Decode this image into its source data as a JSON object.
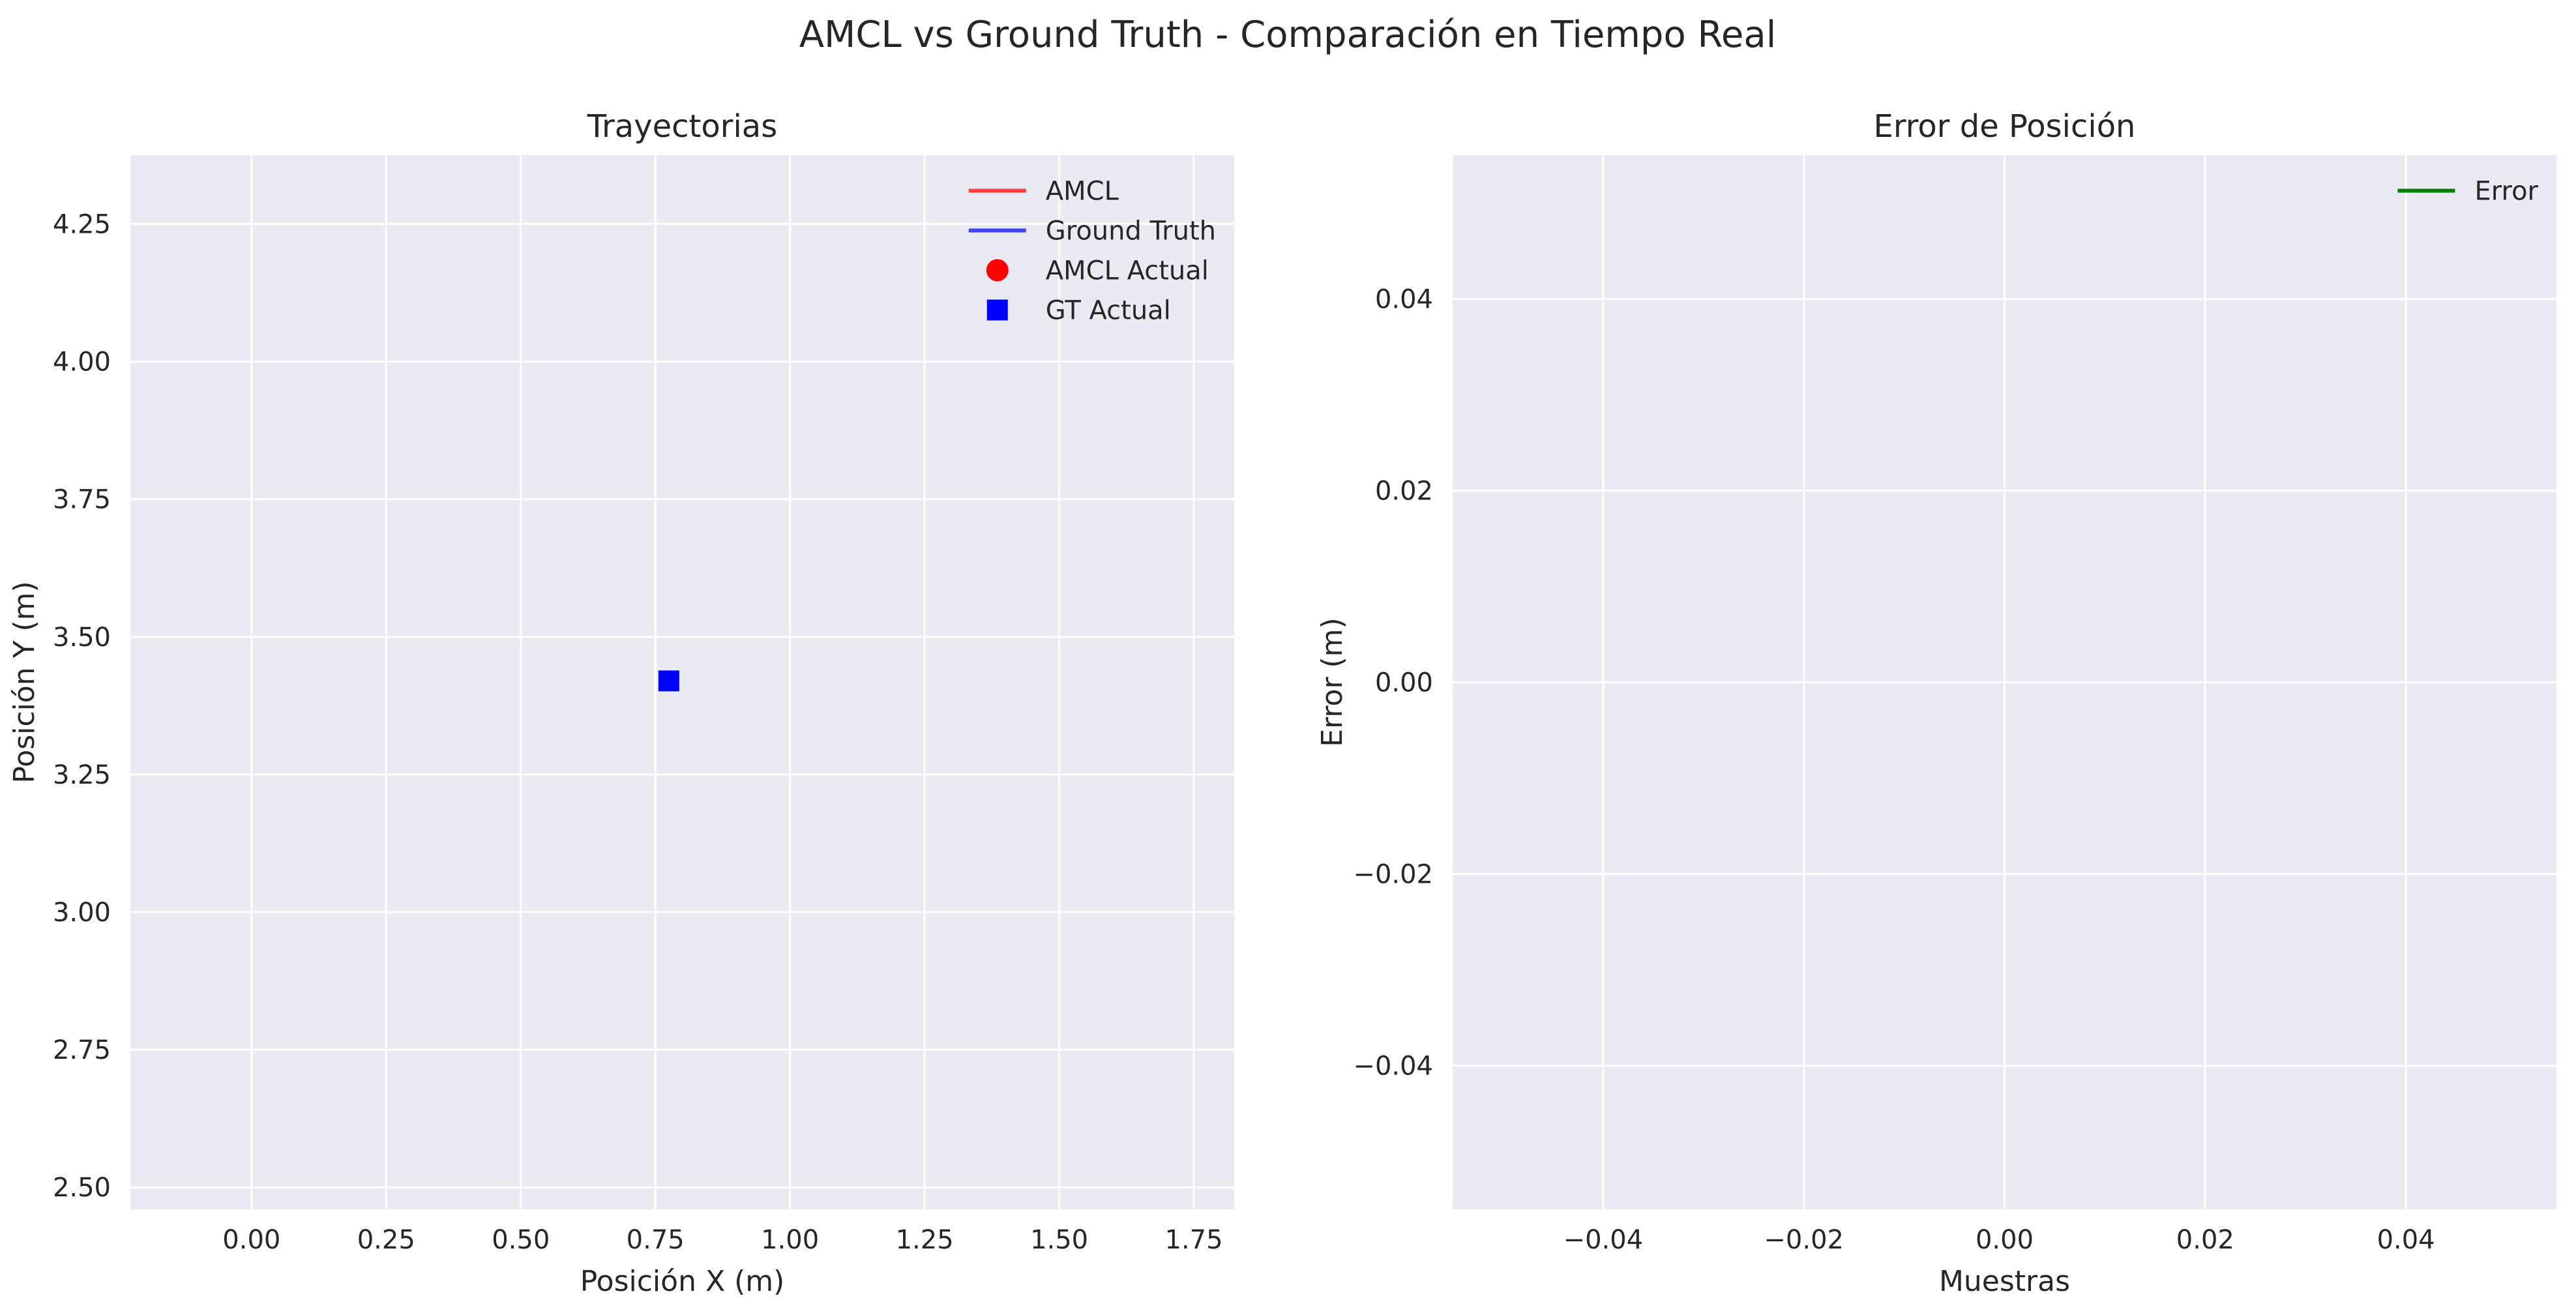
{
  "figure": {
    "suptitle": "AMCL vs Ground Truth - Comparación en Tiempo Real",
    "background": "#ffffff",
    "axes_facecolor": "#eaeaf2",
    "grid_color": "#ffffff"
  },
  "chart_data": [
    {
      "type": "line",
      "title": "Trayectorias",
      "xlabel": "Posición X (m)",
      "ylabel": "Posición Y (m)",
      "xlim": [
        -0.225,
        1.825
      ],
      "ylim": [
        2.46,
        4.375
      ],
      "xticks": [
        0.0,
        0.25,
        0.5,
        0.75,
        1.0,
        1.25,
        1.5,
        1.75
      ],
      "xtick_labels": [
        "0.00",
        "0.25",
        "0.50",
        "0.75",
        "1.00",
        "1.25",
        "1.50",
        "1.75"
      ],
      "yticks": [
        2.5,
        2.75,
        3.0,
        3.25,
        3.5,
        3.75,
        4.0,
        4.25
      ],
      "ytick_labels": [
        "2.50",
        "2.75",
        "3.00",
        "3.25",
        "3.50",
        "3.75",
        "4.00",
        "4.25"
      ],
      "grid": true,
      "legend_position": "top-right",
      "series": [
        {
          "name": "AMCL",
          "kind": "line",
          "color": "#ff3f3f",
          "x": [],
          "y": []
        },
        {
          "name": "Ground Truth",
          "kind": "line",
          "color": "#3f3fff",
          "x": [],
          "y": []
        },
        {
          "name": "AMCL Actual",
          "kind": "marker-circle",
          "color": "#ff0000",
          "x": [],
          "y": []
        },
        {
          "name": "GT Actual",
          "kind": "marker-square",
          "color": "#0000ff",
          "x": [
            0.775
          ],
          "y": [
            3.42
          ]
        }
      ]
    },
    {
      "type": "line",
      "title": "Error de Posición",
      "xlabel": "Muestras",
      "ylabel": "Error (m)",
      "xlim": [
        -0.055,
        0.055
      ],
      "ylim": [
        -0.055,
        0.055
      ],
      "xticks": [
        -0.04,
        -0.02,
        0.0,
        0.02,
        0.04
      ],
      "xtick_labels": [
        "−0.04",
        "−0.02",
        "0.00",
        "0.02",
        "0.04"
      ],
      "yticks": [
        -0.04,
        -0.02,
        0.0,
        0.02,
        0.04
      ],
      "ytick_labels": [
        "−0.04",
        "−0.02",
        "0.00",
        "0.02",
        "0.04"
      ],
      "grid": true,
      "legend_position": "top-right",
      "series": [
        {
          "name": "Error",
          "kind": "line",
          "color": "#008000",
          "x": [],
          "y": []
        }
      ]
    }
  ]
}
